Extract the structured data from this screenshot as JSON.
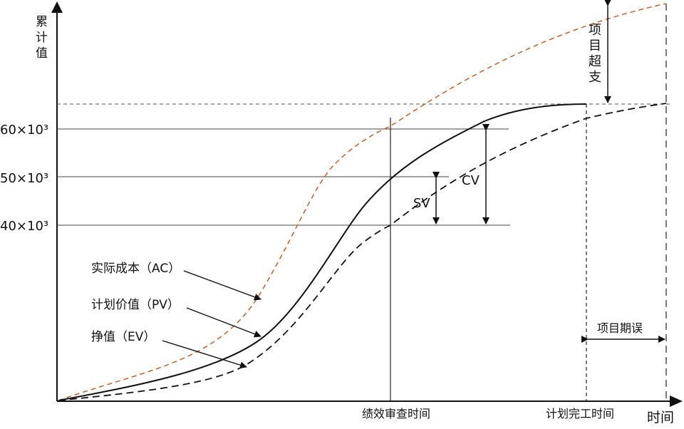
{
  "y_axis_label": [
    "累",
    "计",
    "值"
  ],
  "x_axis_label": "时间",
  "ticks": [
    "60×10³",
    "50×10³",
    "40×10³"
  ],
  "curves": {
    "ac": "实际成本（AC）",
    "pv": "计划价值（PV）",
    "ev": "挣值（EV）"
  },
  "markers": {
    "sv": "SV",
    "cv": "CV",
    "overrun": [
      "项",
      "目",
      "超",
      "支"
    ],
    "delay": "项目期误"
  },
  "x_marks": {
    "review": "绩效审查时间",
    "planned_finish": "计划完工时间"
  },
  "colors": {
    "ac": "#c0602a",
    "pv": "#111111",
    "ev": "#111111"
  }
}
